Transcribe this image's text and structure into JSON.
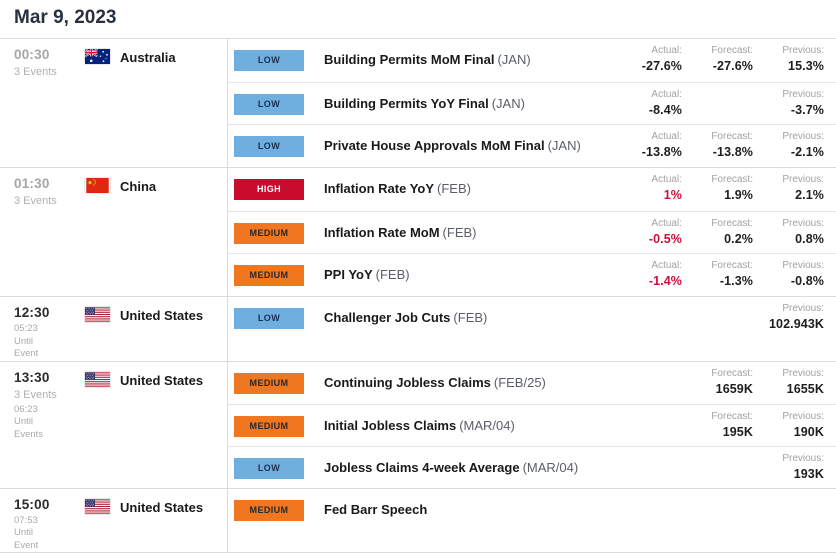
{
  "header": {
    "date": "Mar 9, 2023"
  },
  "labels": {
    "actual": "Actual:",
    "forecast": "Forecast:",
    "previous": "Previous:"
  },
  "colors": {
    "low_badge": "#6fafe0",
    "high_badge": "#c90b2d",
    "medium_badge": "#f0761f",
    "negative_actual": "#ce0e3d",
    "header_text": "#293040",
    "divider": "#dcdcdc"
  },
  "groups": [
    {
      "time": "00:30",
      "time_state": "past",
      "events_count": "3 Events",
      "countdown": [],
      "country": "Australia",
      "flag": "au",
      "events": [
        {
          "importance": "LOW",
          "name": "Building Permits MoM Final",
          "period": "(JAN)",
          "actual": "-27.6%",
          "forecast": "-27.6%",
          "previous": "15.3%",
          "actual_red": false
        },
        {
          "importance": "LOW",
          "name": "Building Permits YoY Final",
          "period": "(JAN)",
          "actual": "-8.4%",
          "forecast": "",
          "previous": "-3.7%",
          "actual_red": false
        },
        {
          "importance": "LOW",
          "name": "Private House Approvals MoM Final",
          "period": "(JAN)",
          "actual": "-13.8%",
          "forecast": "-13.8%",
          "previous": "-2.1%",
          "actual_red": false
        }
      ]
    },
    {
      "time": "01:30",
      "time_state": "past",
      "events_count": "3 Events",
      "countdown": [],
      "country": "China",
      "flag": "cn",
      "events": [
        {
          "importance": "HIGH",
          "name": "Inflation Rate YoY",
          "period": "(FEB)",
          "actual": "1%",
          "forecast": "1.9%",
          "previous": "2.1%",
          "actual_red": true
        },
        {
          "importance": "MEDIUM",
          "name": "Inflation Rate MoM",
          "period": "(FEB)",
          "actual": "-0.5%",
          "forecast": "0.2%",
          "previous": "0.8%",
          "actual_red": true
        },
        {
          "importance": "MEDIUM",
          "name": "PPI YoY",
          "period": "(FEB)",
          "actual": "-1.4%",
          "forecast": "-1.3%",
          "previous": "-0.8%",
          "actual_red": true
        }
      ]
    },
    {
      "time": "12:30",
      "time_state": "upcoming",
      "events_count": "",
      "countdown": [
        "05:23",
        "Until",
        "Event"
      ],
      "country": "United States",
      "flag": "us",
      "events": [
        {
          "importance": "LOW",
          "name": "Challenger Job Cuts",
          "period": "(FEB)",
          "actual": "",
          "forecast": "",
          "previous": "102.943K",
          "actual_red": false
        }
      ]
    },
    {
      "time": "13:30",
      "time_state": "upcoming",
      "events_count": "3 Events",
      "countdown": [
        "06:23",
        "Until",
        "Events"
      ],
      "country": "United States",
      "flag": "us",
      "events": [
        {
          "importance": "MEDIUM",
          "name": "Continuing Jobless Claims",
          "period": "(FEB/25)",
          "actual": "",
          "forecast": "1659K",
          "previous": "1655K",
          "actual_red": false
        },
        {
          "importance": "MEDIUM",
          "name": "Initial Jobless Claims",
          "period": "(MAR/04)",
          "actual": "",
          "forecast": "195K",
          "previous": "190K",
          "actual_red": false
        },
        {
          "importance": "LOW",
          "name": "Jobless Claims 4-week Average",
          "period": "(MAR/04)",
          "actual": "",
          "forecast": "",
          "previous": "193K",
          "actual_red": false
        }
      ]
    },
    {
      "time": "15:00",
      "time_state": "upcoming",
      "events_count": "",
      "countdown": [
        "07:53",
        "Until",
        "Event"
      ],
      "country": "United States",
      "flag": "us",
      "events": [
        {
          "importance": "MEDIUM",
          "name": "Fed Barr Speech",
          "period": "",
          "actual": "",
          "forecast": "",
          "previous": "",
          "actual_red": false
        }
      ]
    }
  ]
}
